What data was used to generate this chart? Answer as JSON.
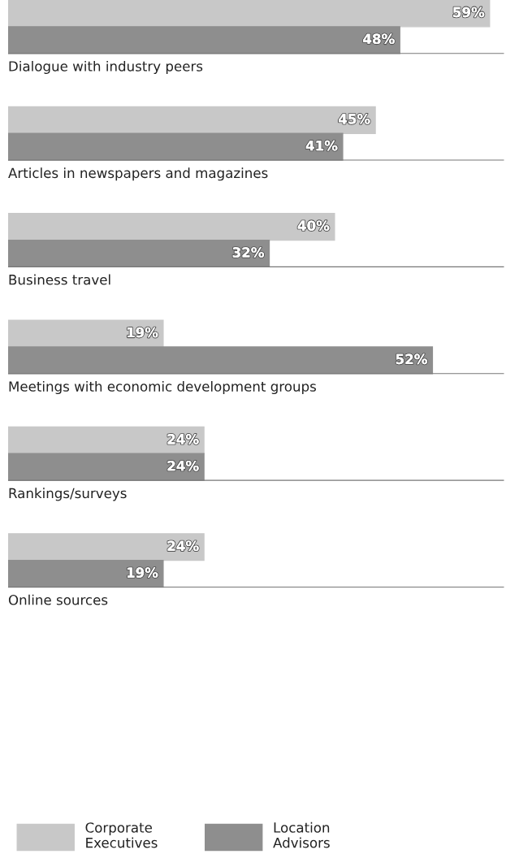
{
  "chart_data": {
    "type": "bar",
    "orientation": "horizontal",
    "categories": [
      "Dialogue with industry peers",
      "Articles in newspapers and magazines",
      "Business travel",
      "Meetings with economic development groups",
      "Rankings/surveys",
      "Online sources"
    ],
    "series": [
      {
        "name": "Corporate Executives",
        "color": "#c8c8c8",
        "values": [
          59,
          45,
          40,
          19,
          24,
          24
        ],
        "value_labels": [
          "59%",
          "45%",
          "40%",
          "19%",
          "24%",
          "24%"
        ]
      },
      {
        "name": "Location Advisors",
        "color": "#8e8e8e",
        "values": [
          48,
          41,
          32,
          52,
          24,
          19
        ],
        "value_labels": [
          "48%",
          "41%",
          "32%",
          "52%",
          "24%",
          "19%"
        ]
      }
    ],
    "legend": "bottom left"
  }
}
